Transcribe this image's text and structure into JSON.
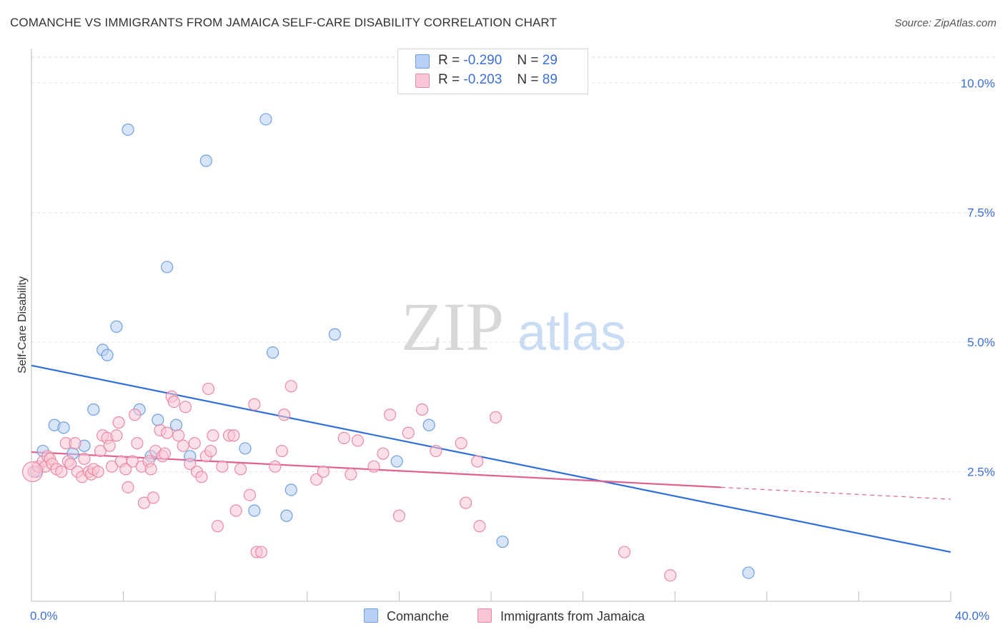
{
  "header": {
    "title": "COMANCHE VS IMMIGRANTS FROM JAMAICA SELF-CARE DISABILITY CORRELATION CHART",
    "source": "Source: ZipAtlas.com"
  },
  "watermark": {
    "zip": "ZIP",
    "atlas": "atlas"
  },
  "legend": {
    "rows": [
      {
        "r_label": "R =",
        "r_value": "-0.290",
        "n_label": "N =",
        "n_value": "29",
        "color": "#b8d0f4",
        "border": "#6f9fe0"
      },
      {
        "r_label": "R =",
        "r_value": "-0.203",
        "n_label": "N =",
        "n_value": "89",
        "color": "#f9c6d6",
        "border": "#e88aa6"
      }
    ]
  },
  "bottom_legend": {
    "comanche": "Comanche",
    "jamaica": "Immigrants from Jamaica"
  },
  "x_axis": {
    "min_label": "0.0%",
    "max_label": "40.0%"
  },
  "chart_data": {
    "type": "scatter",
    "title": "COMANCHE VS IMMIGRANTS FROM JAMAICA SELF-CARE DISABILITY CORRELATION CHART",
    "xlabel": "",
    "ylabel": "Self-Care Disability",
    "xlim": [
      0,
      40
    ],
    "ylim": [
      0,
      10.5
    ],
    "y_ticks": [
      {
        "value": 2.5,
        "label": "2.5%"
      },
      {
        "value": 5.0,
        "label": "5.0%"
      },
      {
        "value": 7.5,
        "label": "7.5%"
      },
      {
        "value": 10.0,
        "label": "10.0%"
      }
    ],
    "x_tick_values": [
      0,
      4,
      8,
      12,
      16,
      20,
      24,
      28,
      32,
      36,
      40
    ],
    "grid": true,
    "legend_position": "top-center",
    "series": [
      {
        "name": "Comanche",
        "color": "#6f9fe0",
        "fill": "#b8d0f4",
        "points": [
          [
            0.2,
            2.5
          ],
          [
            0.5,
            2.9
          ],
          [
            1.0,
            3.4
          ],
          [
            1.4,
            3.35
          ],
          [
            1.8,
            2.85
          ],
          [
            2.3,
            3.0
          ],
          [
            2.7,
            3.7
          ],
          [
            3.1,
            4.85
          ],
          [
            3.3,
            4.75
          ],
          [
            3.7,
            5.3
          ],
          [
            4.2,
            9.1
          ],
          [
            4.7,
            3.7
          ],
          [
            5.2,
            2.8
          ],
          [
            5.5,
            3.5
          ],
          [
            5.9,
            6.45
          ],
          [
            6.3,
            3.4
          ],
          [
            6.9,
            2.8
          ],
          [
            7.6,
            8.5
          ],
          [
            9.3,
            2.95
          ],
          [
            9.7,
            1.75
          ],
          [
            10.2,
            9.3
          ],
          [
            10.5,
            4.8
          ],
          [
            11.1,
            1.65
          ],
          [
            11.3,
            2.15
          ],
          [
            13.2,
            5.15
          ],
          [
            15.9,
            2.7
          ],
          [
            17.3,
            3.4
          ],
          [
            20.5,
            1.15
          ],
          [
            31.2,
            0.55
          ]
        ]
      },
      {
        "name": "Immigrants from Jamaica",
        "color": "#e88aa6",
        "fill": "#f9c6d6",
        "points": [
          [
            0.1,
            2.5
          ],
          [
            0.3,
            2.6
          ],
          [
            0.5,
            2.7
          ],
          [
            0.6,
            2.6
          ],
          [
            0.7,
            2.8
          ],
          [
            0.8,
            2.75
          ],
          [
            0.9,
            2.65
          ],
          [
            1.1,
            2.55
          ],
          [
            1.3,
            2.5
          ],
          [
            1.5,
            3.05
          ],
          [
            1.6,
            2.7
          ],
          [
            1.7,
            2.65
          ],
          [
            1.9,
            3.05
          ],
          [
            2.0,
            2.5
          ],
          [
            2.2,
            2.4
          ],
          [
            2.3,
            2.75
          ],
          [
            2.5,
            2.5
          ],
          [
            2.6,
            2.45
          ],
          [
            2.7,
            2.55
          ],
          [
            2.9,
            2.5
          ],
          [
            3.0,
            2.9
          ],
          [
            3.1,
            3.2
          ],
          [
            3.3,
            3.15
          ],
          [
            3.4,
            3.0
          ],
          [
            3.5,
            2.6
          ],
          [
            3.7,
            3.2
          ],
          [
            3.8,
            3.45
          ],
          [
            3.9,
            2.7
          ],
          [
            4.1,
            2.55
          ],
          [
            4.2,
            2.2
          ],
          [
            4.4,
            2.7
          ],
          [
            4.5,
            3.6
          ],
          [
            4.6,
            3.05
          ],
          [
            4.8,
            2.6
          ],
          [
            4.9,
            1.9
          ],
          [
            5.1,
            2.7
          ],
          [
            5.2,
            2.55
          ],
          [
            5.3,
            2.0
          ],
          [
            5.4,
            2.9
          ],
          [
            5.6,
            3.3
          ],
          [
            5.7,
            2.8
          ],
          [
            5.8,
            2.85
          ],
          [
            5.9,
            3.25
          ],
          [
            6.1,
            3.95
          ],
          [
            6.2,
            3.85
          ],
          [
            6.4,
            3.2
          ],
          [
            6.6,
            3.0
          ],
          [
            6.7,
            3.75
          ],
          [
            6.9,
            2.65
          ],
          [
            7.1,
            3.05
          ],
          [
            7.2,
            2.5
          ],
          [
            7.4,
            2.4
          ],
          [
            7.6,
            2.8
          ],
          [
            7.7,
            4.1
          ],
          [
            7.8,
            2.9
          ],
          [
            7.9,
            3.2
          ],
          [
            8.1,
            1.45
          ],
          [
            8.3,
            2.6
          ],
          [
            8.6,
            3.2
          ],
          [
            8.8,
            3.2
          ],
          [
            8.9,
            1.75
          ],
          [
            9.1,
            2.55
          ],
          [
            9.5,
            2.05
          ],
          [
            9.7,
            3.8
          ],
          [
            9.8,
            0.95
          ],
          [
            10.0,
            0.95
          ],
          [
            10.6,
            2.6
          ],
          [
            10.9,
            2.9
          ],
          [
            11.0,
            3.6
          ],
          [
            11.3,
            4.15
          ],
          [
            12.4,
            2.35
          ],
          [
            12.7,
            2.5
          ],
          [
            13.6,
            3.15
          ],
          [
            13.9,
            2.45
          ],
          [
            14.2,
            3.1
          ],
          [
            14.9,
            2.6
          ],
          [
            15.3,
            2.85
          ],
          [
            15.6,
            3.6
          ],
          [
            16.0,
            1.65
          ],
          [
            16.4,
            3.25
          ],
          [
            17.0,
            3.7
          ],
          [
            17.6,
            2.9
          ],
          [
            18.7,
            3.05
          ],
          [
            18.9,
            1.9
          ],
          [
            19.4,
            2.7
          ],
          [
            19.5,
            1.45
          ],
          [
            20.2,
            3.55
          ],
          [
            25.8,
            0.95
          ],
          [
            27.8,
            0.5
          ]
        ]
      }
    ],
    "trend_lines": [
      {
        "series": "Comanche",
        "x": [
          0,
          40
        ],
        "y": [
          4.55,
          0.95
        ],
        "color": "#2f6fd6"
      },
      {
        "series": "Immigrants from Jamaica",
        "x": [
          0,
          30
        ],
        "y": [
          2.88,
          2.2
        ],
        "dashed_to": [
          40,
          1.97
        ],
        "color": "#e0628e"
      }
    ]
  }
}
